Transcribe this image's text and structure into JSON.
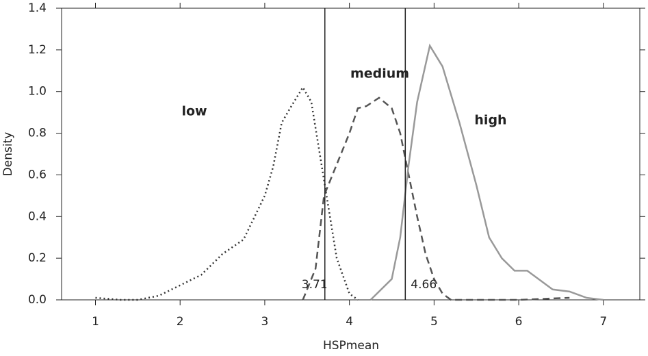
{
  "chart_data": {
    "type": "line",
    "xlabel": "HSPmean",
    "ylabel": "Density",
    "xlim": [
      0.6,
      7.43
    ],
    "ylim": [
      0,
      1.4
    ],
    "xticks": [
      1,
      2,
      3,
      4,
      5,
      6,
      7
    ],
    "yticks": [
      {
        "value": 0,
        "label": "0.0"
      },
      {
        "value": 0.2,
        "label": "0.2"
      },
      {
        "value": 0.4,
        "label": "0.4"
      },
      {
        "value": 0.6,
        "label": "0.6"
      },
      {
        "value": 0.8,
        "label": "0.8"
      },
      {
        "value": 1.0,
        "label": "1.0"
      },
      {
        "value": 1.2,
        "label": "1.2"
      },
      {
        "value": 1.4,
        "label": "1.4"
      }
    ],
    "vlines": [
      3.71,
      4.66
    ],
    "annotations": [
      "low",
      "medium",
      "high"
    ],
    "series": [
      {
        "name": "low",
        "color": "#333333",
        "dash": "dotted",
        "x": [
          1.0,
          1.3,
          1.5,
          1.75,
          2.0,
          2.25,
          2.5,
          2.75,
          3.0,
          3.1,
          3.2,
          3.3,
          3.45,
          3.55,
          3.65,
          3.75,
          3.85,
          4.0,
          4.1
        ],
        "values": [
          0.01,
          0.0,
          0.0,
          0.02,
          0.07,
          0.12,
          0.22,
          0.29,
          0.5,
          0.64,
          0.85,
          0.92,
          1.02,
          0.95,
          0.7,
          0.45,
          0.2,
          0.03,
          0.0
        ]
      },
      {
        "name": "medium",
        "color": "#555555",
        "dash": "dashed",
        "x": [
          3.45,
          3.6,
          3.7,
          3.85,
          4.0,
          4.1,
          4.2,
          4.35,
          4.5,
          4.6,
          4.7,
          4.8,
          4.9,
          5.0,
          5.1,
          5.2,
          6.0,
          6.6
        ],
        "values": [
          0.0,
          0.15,
          0.5,
          0.65,
          0.8,
          0.92,
          0.93,
          0.97,
          0.92,
          0.8,
          0.6,
          0.4,
          0.22,
          0.1,
          0.03,
          0.0,
          0.0,
          0.01
        ]
      },
      {
        "name": "high",
        "color": "#999999",
        "dash": "solid",
        "x": [
          4.25,
          4.5,
          4.6,
          4.7,
          4.8,
          4.95,
          5.1,
          5.3,
          5.5,
          5.65,
          5.8,
          5.95,
          6.1,
          6.3,
          6.4,
          6.6,
          6.8,
          7.0
        ],
        "values": [
          0.0,
          0.1,
          0.3,
          0.65,
          0.95,
          1.22,
          1.12,
          0.85,
          0.55,
          0.3,
          0.2,
          0.14,
          0.14,
          0.08,
          0.05,
          0.04,
          0.01,
          0.0
        ]
      }
    ]
  }
}
